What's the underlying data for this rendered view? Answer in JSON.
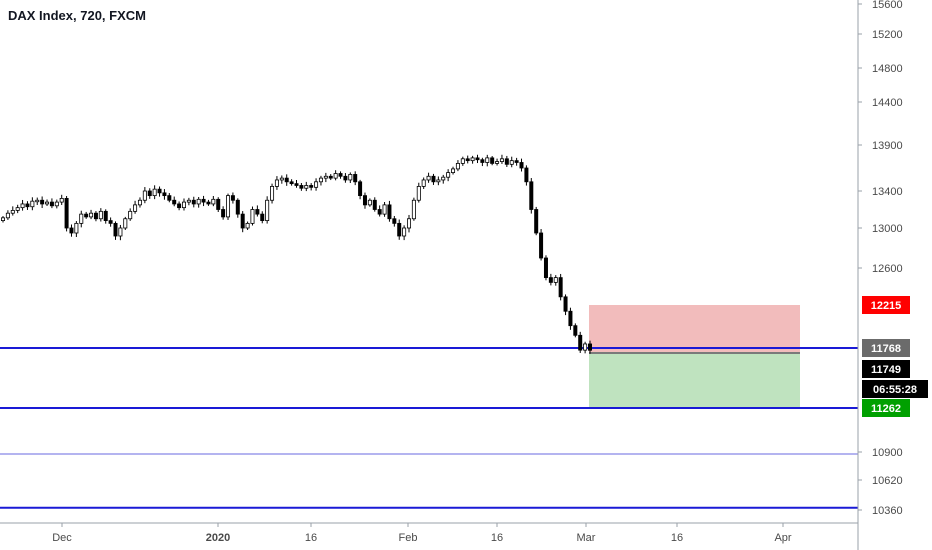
{
  "header": {
    "title": "DAX Index, 720, FXCM"
  },
  "colors": {
    "candle": "#000000",
    "hline_dark": "#1a1ad6",
    "hline_light": "#6a6ae0",
    "stop_zone": "#f2bcbc",
    "target_zone": "#bfe3bf",
    "badge_red": "#ff0000",
    "badge_green": "#00a000",
    "badge_grey": "#6b6b6b",
    "badge_black": "#000000"
  },
  "badges": [
    {
      "label": "12215",
      "color": "#ff0000"
    },
    {
      "label": "11768",
      "color": "#6b6b6b"
    },
    {
      "label": "11749",
      "color": "#000000"
    },
    {
      "label": "06:55:28",
      "color": "#000000"
    },
    {
      "label": "11262",
      "color": "#00a000"
    }
  ],
  "chart_data": {
    "type": "candlestick",
    "title": "DAX Index, 720, FXCM",
    "y_ticks": [
      15600,
      15200,
      14800,
      14400,
      13900,
      13400,
      13000,
      12600,
      12215,
      11768,
      11749,
      11262,
      10900,
      10620,
      10360
    ],
    "x_ticks": [
      "Dec",
      "2020",
      "16",
      "Feb",
      "16",
      "Mar",
      "16",
      "Apr"
    ],
    "price_path": [
      13110,
      13160,
      13190,
      13220,
      13260,
      13230,
      13290,
      13300,
      13260,
      13280,
      13240,
      13280,
      13320,
      13000,
      12950,
      13050,
      13150,
      13120,
      13160,
      13100,
      13180,
      13080,
      13050,
      12920,
      13000,
      13100,
      13180,
      13250,
      13300,
      13400,
      13350,
      13420,
      13380,
      13350,
      13300,
      13260,
      13220,
      13280,
      13300,
      13260,
      13310,
      13280,
      13260,
      13310,
      13200,
      13120,
      13350,
      13300,
      13150,
      13000,
      13050,
      13200,
      13150,
      13080,
      13300,
      13450,
      13520,
      13540,
      13500,
      13480,
      13460,
      13430,
      13460,
      13440,
      13500,
      13540,
      13560,
      13540,
      13590,
      13560,
      13520,
      13580,
      13500,
      13350,
      13250,
      13300,
      13200,
      13150,
      13250,
      13100,
      13050,
      12920,
      13000,
      13100,
      13300,
      13450,
      13520,
      13560,
      13500,
      13520,
      13550,
      13600,
      13640,
      13700,
      13750,
      13730,
      13760,
      13740,
      13710,
      13760,
      13700,
      13720,
      13750,
      13690,
      13730,
      13710,
      13650,
      13500,
      13200,
      12950,
      12700,
      12500,
      12450,
      12500,
      12300,
      12150,
      12000,
      11900,
      11750,
      11810,
      11749
    ],
    "y_mapping": [
      [
        13900,
        145
      ],
      [
        13400,
        191
      ],
      [
        13000,
        228
      ],
      [
        12600,
        268
      ],
      [
        12215,
        305
      ],
      [
        11768,
        348
      ],
      [
        11262,
        408
      ],
      [
        10900,
        452
      ],
      [
        10620,
        480
      ],
      [
        10360,
        510
      ]
    ],
    "horizontal_lines": [
      {
        "price": 11768,
        "style": "thick"
      },
      {
        "price": 11262,
        "style": "thick"
      },
      {
        "price": 10880,
        "style": "thin"
      },
      {
        "price": 10380,
        "style": "thick"
      }
    ],
    "position_tool": {
      "entry": 11768,
      "stop": 12215,
      "target": 11262
    },
    "grid": false,
    "legend": "none"
  }
}
